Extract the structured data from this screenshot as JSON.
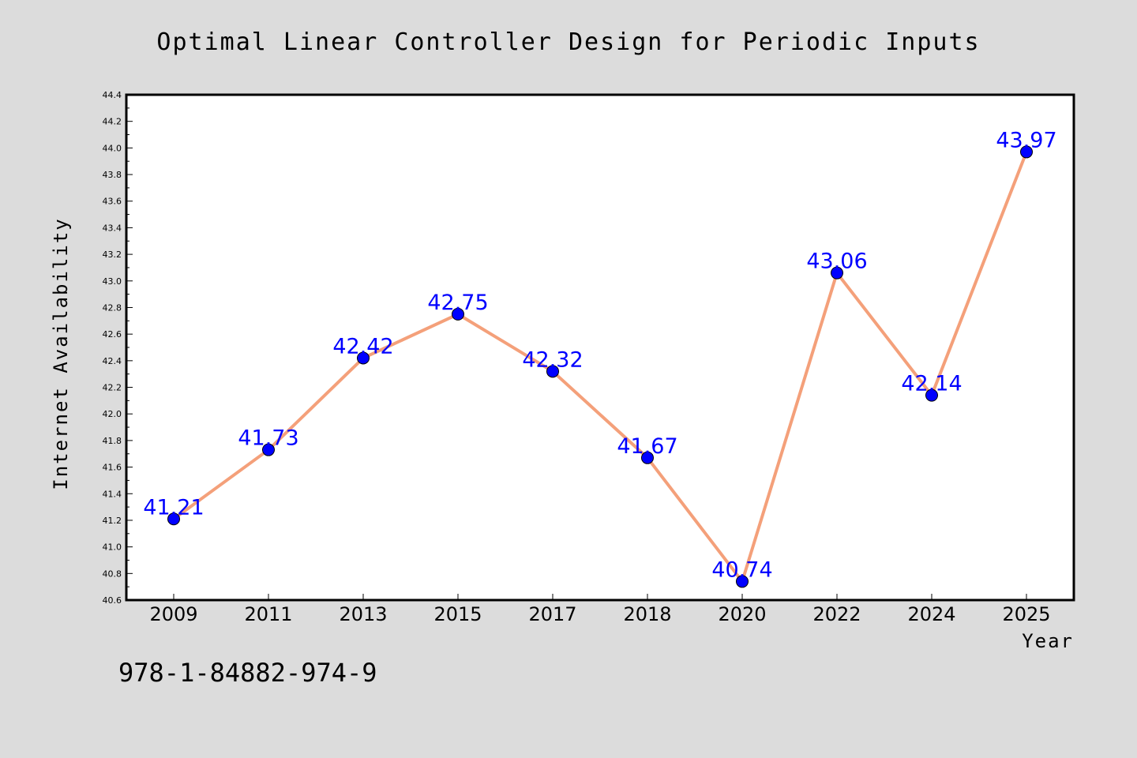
{
  "chart_data": {
    "type": "line",
    "title": "Optimal Linear Controller Design for Periodic Inputs",
    "xlabel": "Year",
    "ylabel": "Internet Availability",
    "categories": [
      "2009",
      "2011",
      "2013",
      "2015",
      "2017",
      "2018",
      "2020",
      "2022",
      "2024",
      "2025"
    ],
    "series": [
      {
        "values": [
          41.21,
          41.73,
          42.42,
          42.75,
          42.32,
          41.67,
          40.74,
          43.06,
          42.14,
          43.97
        ],
        "line_color": "#f4a07a",
        "marker_color": "#0000ff"
      }
    ],
    "data_labels": [
      "41.21",
      "41.73",
      "42.42",
      "42.75",
      "42.32",
      "41.67",
      "40.74",
      "43.06",
      "42.14",
      "43.97"
    ],
    "ylim": [
      40.6,
      44.4
    ],
    "y_ticks": [
      "40.6",
      "40.8",
      "41.0",
      "41.2",
      "41.4",
      "41.6",
      "41.8",
      "42.0",
      "42.2",
      "42.4",
      "42.6",
      "42.8",
      "43.0",
      "43.2",
      "43.4",
      "43.6",
      "43.8",
      "44.0",
      "44.2",
      "44.4"
    ],
    "grid": false,
    "legend": "none",
    "background_color": "#dcdcdc",
    "plot_background_color": "#ffffff",
    "label_color": "#0000ff"
  },
  "caption": "978-1-84882-974-9"
}
